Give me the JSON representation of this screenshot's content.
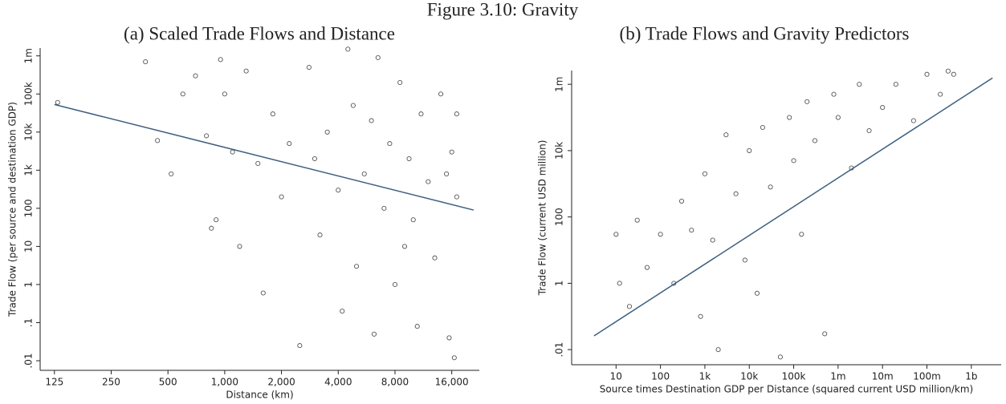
{
  "title": "Figure 3.10: Gravity",
  "chart_data": [
    {
      "type": "scatter",
      "title": "(a) Scaled Trade Flows and Distance",
      "x_label": "Distance (km)",
      "y_label": "Trade Flow (per source and destination GDP)",
      "xlog": true,
      "ylog": true,
      "xlim": [
        105,
        22400
      ],
      "ylim": [
        0.0056,
        1600000
      ],
      "xticks": [
        125,
        250,
        500,
        {
          "value": 1000,
          "label": "1,000"
        },
        {
          "value": 2000,
          "label": "2,000"
        },
        {
          "value": 4000,
          "label": "4,000"
        },
        {
          "value": 8000,
          "label": "8,000"
        },
        {
          "value": 16000,
          "label": "16,000"
        }
      ],
      "yticks": [
        {
          "value": 0.01,
          "label": ".01"
        },
        {
          "value": 0.1,
          "label": ".1"
        },
        1,
        10,
        100,
        {
          "value": 1000,
          "label": "1k"
        },
        {
          "value": 10000,
          "label": "10k"
        },
        {
          "value": 100000,
          "label": "100k"
        },
        {
          "value": 1000000,
          "label": "1m"
        }
      ],
      "series": [
        {
          "mode": "markers",
          "color": "#555555",
          "x": [
            130,
            380,
            440,
            520,
            600,
            700,
            800,
            850,
            900,
            950,
            1000,
            1100,
            1200,
            1300,
            1500,
            1600,
            1800,
            2000,
            2200,
            2500,
            2800,
            3000,
            3200,
            3500,
            4000,
            4200,
            4500,
            4800,
            5000,
            5500,
            6000,
            6200,
            6500,
            7000,
            7500,
            8000,
            8500,
            9000,
            9500,
            10000,
            10500,
            11000,
            12000,
            13000,
            14000,
            15000,
            15500,
            16000,
            16500,
            17000,
            17000
          ],
          "values": [
            60000,
            700000,
            6000,
            800,
            100000,
            300000,
            8000,
            30,
            50,
            800000,
            100000,
            3000,
            10,
            400000,
            1500,
            0.6,
            30000,
            200,
            5000,
            0.025,
            500000,
            2000,
            20,
            10000,
            300,
            0.2,
            1500000,
            50000,
            3,
            800,
            20000,
            0.05,
            900000,
            100,
            5000,
            1,
            200000,
            10,
            2000,
            50,
            0.08,
            30000,
            500,
            5,
            100000,
            800,
            0.04,
            3000,
            0.012,
            200,
            30000
          ]
        },
        {
          "mode": "line",
          "color": "#3d5f7f",
          "x": [
            125,
            20900
          ],
          "values": [
            53000,
            90
          ]
        }
      ]
    },
    {
      "type": "scatter",
      "title": "(b) Trade Flows and Gravity Predictors",
      "x_label": "Source times Destination GDP per Distance (squared current USD million/km)",
      "y_label": "Trade Flow (current USD million)",
      "xlog": true,
      "ylog": true,
      "xlim": [
        1,
        4700000000
      ],
      "ylim": [
        0.0035,
        2600000
      ],
      "xticks": [
        10,
        100,
        {
          "value": 1000,
          "label": "1k"
        },
        {
          "value": 10000,
          "label": "10k"
        },
        {
          "value": 100000,
          "label": "100k"
        },
        {
          "value": 1000000,
          "label": "1m"
        },
        {
          "value": 10000000,
          "label": "10m"
        },
        {
          "value": 100000000,
          "label": "100m"
        },
        {
          "value": 1000000000,
          "label": "1b"
        }
      ],
      "yticks": [
        {
          "value": 0.01,
          "label": ".01"
        },
        1,
        100,
        {
          "value": 10000,
          "label": "10k"
        },
        {
          "value": 1000000,
          "label": "1m"
        }
      ],
      "series": [
        {
          "mode": "markers",
          "color": "#555555",
          "x": [
            10,
            12,
            20,
            30,
            50,
            100,
            200,
            300,
            500,
            800,
            1000,
            1500,
            2000,
            3000,
            5000,
            8000,
            10000,
            15000,
            20000,
            30000,
            50000,
            80000,
            100000,
            150000,
            200000,
            300000,
            500000,
            800000,
            1000000,
            2000000,
            3000000,
            5000000,
            10000000,
            20000000,
            50000000,
            100000000,
            200000000,
            300000000,
            400000000
          ],
          "values": [
            30,
            1,
            0.2,
            80,
            3,
            30,
            1,
            300,
            40,
            0.1,
            2000,
            20,
            0.01,
            30000,
            500,
            5,
            10000,
            0.5,
            50000,
            800,
            0.006,
            100000,
            5000,
            30,
            300000,
            20000,
            0.03,
            500000,
            100000,
            3000,
            1000000,
            40000,
            200000,
            1000000,
            80000,
            2000000,
            500000,
            2500000,
            2000000
          ]
        },
        {
          "mode": "line",
          "color": "#3d5f7f",
          "x": [
            3.2,
            3000000000
          ],
          "values": [
            0.026,
            1550000
          ]
        }
      ]
    }
  ]
}
